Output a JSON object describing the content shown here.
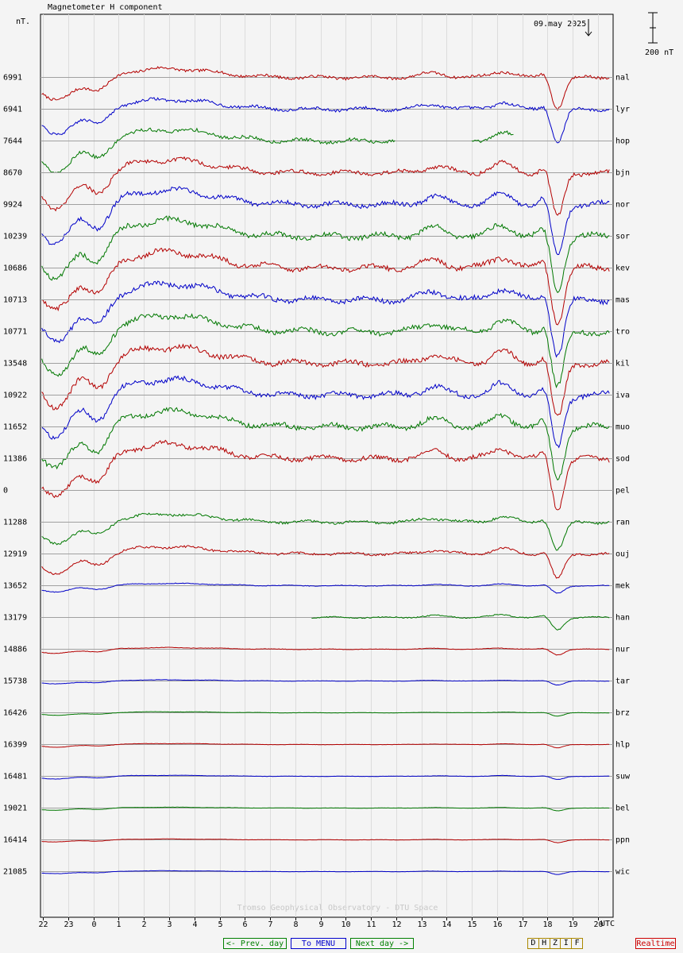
{
  "header": {
    "title": "Magnetometer H component",
    "unit": "nT.",
    "date": "09.may 2025",
    "scale": "200 nT"
  },
  "footer": {
    "credit": "Tromso Geophysical Observatory - DTU Space",
    "prev": "<- Prev. day",
    "menu": "To MENU",
    "next": "Next day ->",
    "components": [
      "D",
      "H",
      "Z",
      "I",
      "F"
    ],
    "realtime": "Realtime"
  },
  "colors": {
    "red": "#b40000",
    "blue": "#0000c8",
    "green": "#007800"
  },
  "chart_data": {
    "type": "line",
    "title": "Magnetometer H component",
    "ylabel": "nT.",
    "xlabel": "UTC",
    "x_ticks": [
      "22",
      "23",
      "0",
      "1",
      "2",
      "3",
      "4",
      "5",
      "6",
      "7",
      "8",
      "9",
      "10",
      "11",
      "12",
      "13",
      "14",
      "15",
      "16",
      "17",
      "18",
      "19",
      "20"
    ],
    "x_range_hours": [
      -2.1,
      20.6
    ],
    "grid": true,
    "stations": [
      {
        "code": "nal",
        "baseline": 6991,
        "color": "red"
      },
      {
        "code": "lyr",
        "baseline": 6941,
        "color": "blue"
      },
      {
        "code": "hop",
        "baseline": 7644,
        "color": "green"
      },
      {
        "code": "bjn",
        "baseline": 8670,
        "color": "red"
      },
      {
        "code": "nor",
        "baseline": 9924,
        "color": "blue"
      },
      {
        "code": "sor",
        "baseline": 10239,
        "color": "green"
      },
      {
        "code": "kev",
        "baseline": 10686,
        "color": "red"
      },
      {
        "code": "mas",
        "baseline": 10713,
        "color": "blue"
      },
      {
        "code": "tro",
        "baseline": 10771,
        "color": "green"
      },
      {
        "code": "kil",
        "baseline": 13548,
        "color": "red"
      },
      {
        "code": "iva",
        "baseline": 10922,
        "color": "blue"
      },
      {
        "code": "muo",
        "baseline": 11652,
        "color": "green"
      },
      {
        "code": "sod",
        "baseline": 11386,
        "color": "red"
      },
      {
        "code": "pel",
        "baseline": 0,
        "color": "blue"
      },
      {
        "code": "ran",
        "baseline": 11288,
        "color": "green"
      },
      {
        "code": "ouj",
        "baseline": 12919,
        "color": "red"
      },
      {
        "code": "mek",
        "baseline": 13652,
        "color": "blue"
      },
      {
        "code": "han",
        "baseline": 13179,
        "color": "green"
      },
      {
        "code": "nur",
        "baseline": 14886,
        "color": "red"
      },
      {
        "code": "tar",
        "baseline": 15738,
        "color": "blue"
      },
      {
        "code": "brz",
        "baseline": 16426,
        "color": "green"
      },
      {
        "code": "hlp",
        "baseline": 16399,
        "color": "red"
      },
      {
        "code": "suw",
        "baseline": 16481,
        "color": "blue"
      },
      {
        "code": "bel",
        "baseline": 19021,
        "color": "green"
      },
      {
        "code": "ppn",
        "baseline": 16414,
        "color": "red"
      },
      {
        "code": "wic",
        "baseline": 21085,
        "color": "blue"
      }
    ]
  }
}
